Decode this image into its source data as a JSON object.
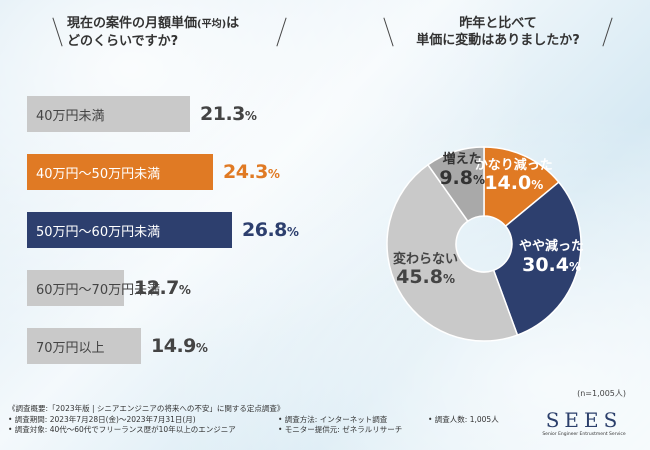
{
  "left_title": {
    "line1": "現在の案件の月額単価",
    "paren": "(平均)",
    "line1_end": "は",
    "line2": "どのくらいですか?"
  },
  "right_title": {
    "line1": "昨年と比べて",
    "line2": "単価に変動はありましたか?"
  },
  "chart_data": [
    {
      "type": "bar",
      "orientation": "horizontal",
      "title": "現在の案件の月額単価(平均)はどのくらいですか?",
      "categories": [
        "40万円未満",
        "40万円〜50万円未満",
        "50万円〜60万円未満",
        "60万円〜70万円未満",
        "70万円以上"
      ],
      "values": [
        21.3,
        24.3,
        26.8,
        12.7,
        14.9
      ],
      "value_labels": [
        "21.3",
        "24.3",
        "26.8",
        "12.7",
        "14.9"
      ],
      "unit": "%",
      "colors": [
        "#c9c9c9",
        "#e07a24",
        "#2d3f6e",
        "#c9c9c9",
        "#c9c9c9"
      ],
      "label_colors": [
        "#444444",
        "#ffffff",
        "#ffffff",
        "#444444",
        "#444444"
      ],
      "value_colors": [
        "#444444",
        "#e07a24",
        "#2d3f6e",
        "#444444",
        "#444444"
      ]
    },
    {
      "type": "pie",
      "style": "donut",
      "title": "昨年と比べて単価に変動はありましたか?",
      "categories": [
        "かなり減った",
        "やや減った",
        "変わらない",
        "増えた"
      ],
      "values": [
        14.0,
        30.4,
        45.8,
        9.8
      ],
      "value_labels": [
        "14.0",
        "30.4",
        "45.8",
        "9.8"
      ],
      "unit": "%",
      "colors": [
        "#e07a24",
        "#2d3f6e",
        "#c9c9c9",
        "#a9a9a9"
      ],
      "label_colors": [
        "#ffffff",
        "#ffffff",
        "#444444",
        "#333333"
      ]
    }
  ],
  "sample_note": "(n=1,005人)",
  "footer": {
    "overview": "《調査概要:「2023年版 | シニアエンジニアの将来への不安」に関する定点調査》",
    "period": "• 調査期間: 2023年7月28日(金)〜2023年7月31日(月)",
    "method": "• 調査方法: インターネット調査",
    "count": "• 調査人数: 1,005人",
    "target": "• 調査対象: 40代〜60代でフリーランス歴が10年以上のエンジニア",
    "provider": "• モニター提供元: ゼネラルリサーチ"
  },
  "logo": {
    "mark": "SEES",
    "sub": "Senior Engineer Entrustment Service"
  }
}
